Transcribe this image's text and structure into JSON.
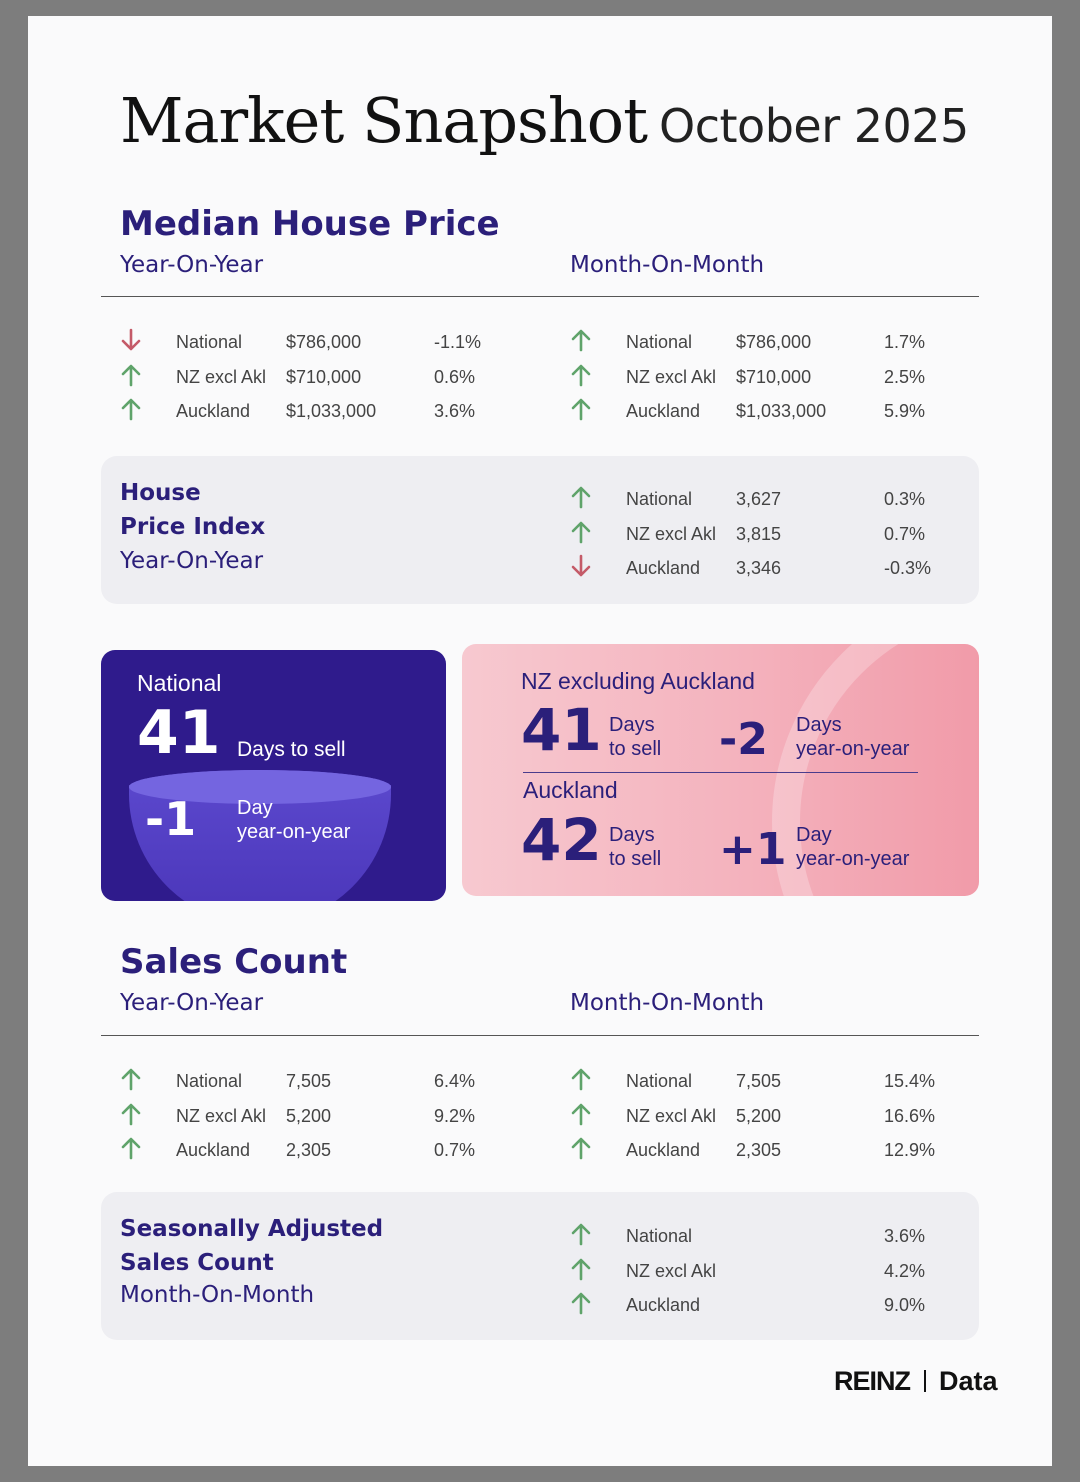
{
  "title": {
    "main": "Market Snapshot",
    "period": "October 2025"
  },
  "median": {
    "heading": "Median House Price",
    "yoy_label": "Year-On-Year",
    "mom_label": "Month-On-Month",
    "yoy": [
      {
        "dir": "down",
        "region": "National",
        "value": "$786,000",
        "change": "-1.1%"
      },
      {
        "dir": "up",
        "region": "NZ excl Akl",
        "value": "$710,000",
        "change": "0.6%"
      },
      {
        "dir": "up",
        "region": "Auckland",
        "value": "$1,033,000",
        "change": "3.6%"
      }
    ],
    "mom": [
      {
        "dir": "up",
        "region": "National",
        "value": "$786,000",
        "change": "1.7%"
      },
      {
        "dir": "up",
        "region": "NZ excl Akl",
        "value": "$710,000",
        "change": "2.5%"
      },
      {
        "dir": "up",
        "region": "Auckland",
        "value": "$1,033,000",
        "change": "5.9%"
      }
    ]
  },
  "hpi": {
    "title_line1": "House",
    "title_line2": "Price Index",
    "sub": "Year-On-Year",
    "rows": [
      {
        "dir": "up",
        "region": "National",
        "value": "3,627",
        "change": "0.3%"
      },
      {
        "dir": "up",
        "region": "NZ excl Akl",
        "value": "3,815",
        "change": "0.7%"
      },
      {
        "dir": "down",
        "region": "Auckland",
        "value": "3,346",
        "change": "-0.3%"
      }
    ]
  },
  "days_national": {
    "label": "National",
    "days": "41",
    "days_text": "Days to sell",
    "change": "-1",
    "change_text_1": "Day",
    "change_text_2": "year-on-year"
  },
  "days_regions": {
    "nz_excl_label": "NZ excluding Auckland",
    "nz_excl_days": "41",
    "nz_excl_change": "-2",
    "akl_label": "Auckland",
    "akl_days": "42",
    "akl_change": "+1",
    "days_word": "Days",
    "to_sell": "to sell",
    "day_word": "Day",
    "yoy_word": "year-on-year"
  },
  "sales": {
    "heading": "Sales Count",
    "yoy_label": "Year-On-Year",
    "mom_label": "Month-On-Month",
    "yoy": [
      {
        "dir": "up",
        "region": "National",
        "value": "7,505",
        "change": "6.4%"
      },
      {
        "dir": "up",
        "region": "NZ excl Akl",
        "value": "5,200",
        "change": "9.2%"
      },
      {
        "dir": "up",
        "region": "Auckland",
        "value": "2,305",
        "change": "0.7%"
      }
    ],
    "mom": [
      {
        "dir": "up",
        "region": "National",
        "value": "7,505",
        "change": "15.4%"
      },
      {
        "dir": "up",
        "region": "NZ excl Akl",
        "value": "5,200",
        "change": "16.6%"
      },
      {
        "dir": "up",
        "region": "Auckland",
        "value": "2,305",
        "change": "12.9%"
      }
    ]
  },
  "seasonal": {
    "title_line1": "Seasonally Adjusted",
    "title_line2": "Sales Count",
    "sub": "Month-On-Month",
    "rows": [
      {
        "dir": "up",
        "region": "National",
        "change": "3.6%"
      },
      {
        "dir": "up",
        "region": "NZ excl Akl",
        "change": "4.2%"
      },
      {
        "dir": "up",
        "region": "Auckland",
        "change": "9.0%"
      }
    ]
  },
  "footer": {
    "brand": "REINZ",
    "product": "Data"
  },
  "colors": {
    "up": "#5fa36a",
    "down": "#c45a68",
    "navy": "#2b1f7a",
    "card": "#2f1b8c"
  }
}
